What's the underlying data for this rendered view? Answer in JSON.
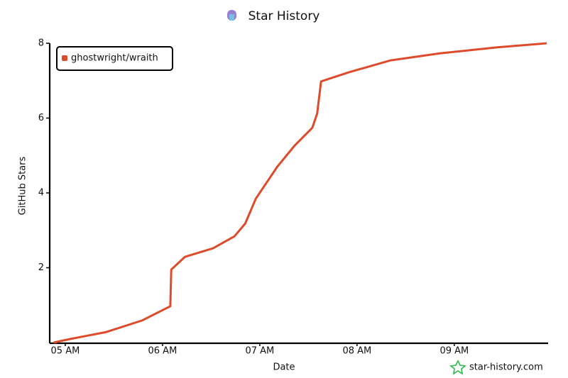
{
  "chart_data": {
    "type": "line",
    "title": "Star History",
    "x_label": "Date",
    "y_label": "GitHub Stars",
    "x": [
      4.88,
      5.06,
      5.42,
      5.79,
      6.08,
      6.09,
      6.23,
      6.52,
      6.74,
      6.85,
      6.96,
      7.18,
      7.36,
      7.54,
      7.59,
      7.63,
      7.91,
      8.34,
      8.85,
      9.44,
      9.95
    ],
    "series": [
      {
        "name": "ghostwright/wraith",
        "color": "#dd4b2b",
        "values": [
          0,
          0.1,
          0.28,
          0.59,
          0.97,
          1.95,
          2.29,
          2.52,
          2.84,
          3.18,
          3.85,
          4.7,
          5.27,
          5.74,
          6.12,
          6.98,
          7.22,
          7.54,
          7.73,
          7.89,
          8
        ]
      }
    ],
    "xlim": [
      4.84,
      9.95
    ],
    "xticks": [
      {
        "value": 5,
        "label": "05 AM"
      },
      {
        "value": 6,
        "label": "06 AM"
      },
      {
        "value": 7,
        "label": "07 AM"
      },
      {
        "value": 8,
        "label": "08 AM"
      },
      {
        "value": 9,
        "label": "09 AM"
      }
    ],
    "ylim": [
      0,
      8
    ],
    "yticks": [
      2,
      4,
      6,
      8
    ],
    "legend": "top-left",
    "watermark": "star-history.com"
  }
}
